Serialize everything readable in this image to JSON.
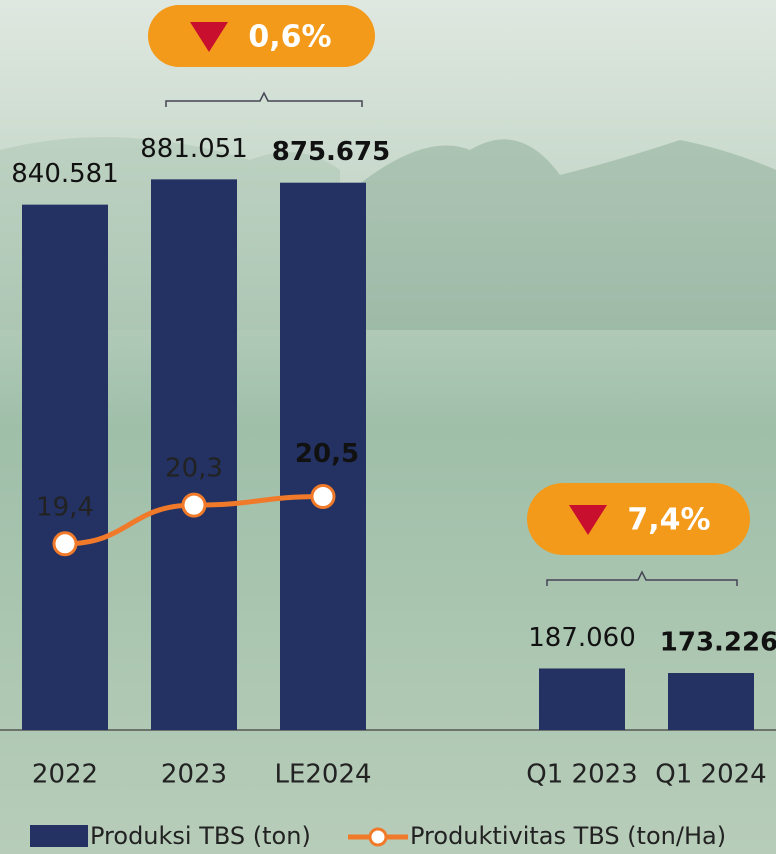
{
  "chart_data": [
    {
      "type": "bar",
      "categories": [
        "2022",
        "2023",
        "LE2024"
      ],
      "ylim": [
        0,
        1000000
      ],
      "y2lim": [
        18,
        25
      ],
      "change": "0,6%",
      "series": [
        {
          "name": "Produksi TBS (ton)",
          "color": "#233262",
          "values": [
            840581,
            881051,
            875675
          ],
          "value_labels": [
            "840.581",
            "881.051",
            "875.675"
          ]
        },
        {
          "name": "Produktivitas TBS (ton/Ha)",
          "color": "#f07a2a",
          "axis": "y2",
          "type": "line",
          "values": [
            19.4,
            20.3,
            20.5
          ],
          "value_labels": [
            "19,4",
            "20,3",
            "20,5"
          ]
        }
      ]
    },
    {
      "type": "bar",
      "categories": [
        "Q1 2023",
        "Q1 2024"
      ],
      "ylim": [
        0,
        1900000
      ],
      "change": "7,4%",
      "series": [
        {
          "color": "#233262",
          "values": [
            187060,
            173226
          ],
          "value_labels": [
            "187.060",
            "173.226"
          ]
        }
      ]
    }
  ]
}
